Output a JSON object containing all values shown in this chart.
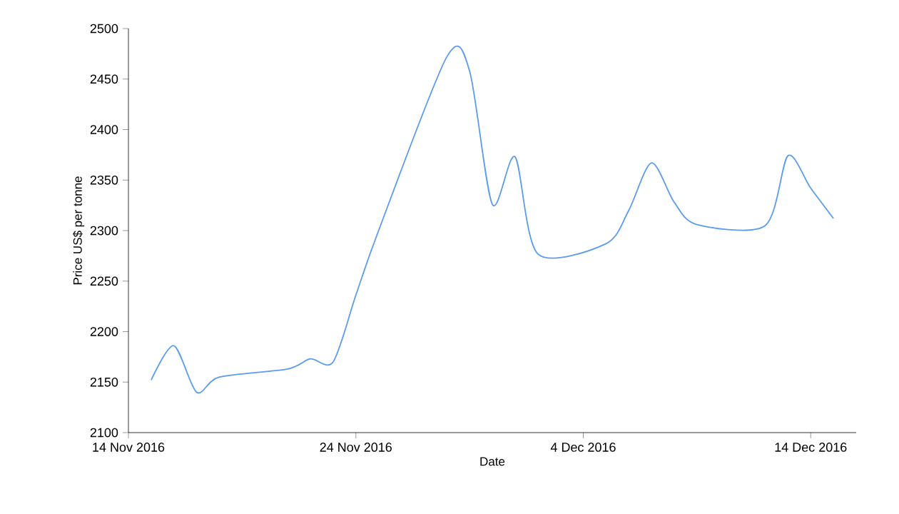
{
  "chart_data": {
    "type": "line",
    "xlabel": "Date",
    "ylabel": "Price US$ per tonne",
    "x": [
      "2016-11-15",
      "2016-11-16",
      "2016-11-17",
      "2016-11-18",
      "2016-11-21",
      "2016-11-22",
      "2016-11-23",
      "2016-11-24",
      "2016-11-25",
      "2016-11-28",
      "2016-11-29",
      "2016-11-30",
      "2016-12-01",
      "2016-12-02",
      "2016-12-05",
      "2016-12-06",
      "2016-12-07",
      "2016-12-08",
      "2016-12-09",
      "2016-12-12",
      "2016-12-13",
      "2016-12-14",
      "2016-12-15"
    ],
    "series": [
      {
        "color": "#5b9bf0",
        "values": [
          2152,
          2186,
          2140,
          2155,
          2163,
          2173,
          2170,
          2236,
          2300,
          2472,
          2458,
          2326,
          2373,
          2277,
          2287,
          2320,
          2367,
          2328,
          2306,
          2305,
          2374,
          2342,
          2312
        ]
      }
    ],
    "xlim": [
      "2016-11-14",
      "2016-12-16"
    ],
    "xticks": [
      {
        "value": "2016-11-14",
        "label": "14 Nov 2016"
      },
      {
        "value": "2016-11-24",
        "label": "24 Nov 2016"
      },
      {
        "value": "2016-12-04",
        "label": "4 Dec 2016"
      },
      {
        "value": "2016-12-14",
        "label": "14 Dec 2016"
      }
    ],
    "ylim": [
      2100,
      2500
    ],
    "yticks": [
      2100,
      2150,
      2200,
      2250,
      2300,
      2350,
      2400,
      2450,
      2500
    ],
    "grid": false,
    "marker": "none",
    "line_style": "solid"
  }
}
